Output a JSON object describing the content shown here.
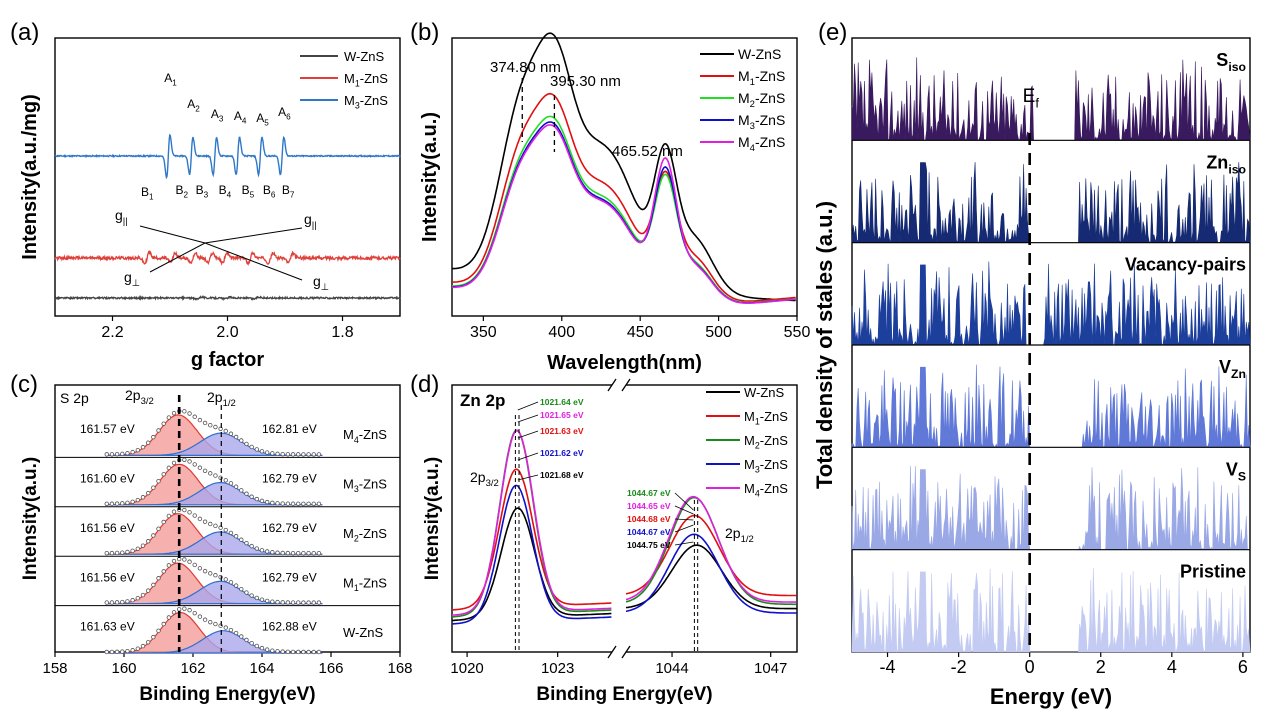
{
  "panel_labels": [
    "(a)",
    "(b)",
    "(c)",
    "(d)",
    "(e)"
  ],
  "chart_data": [
    {
      "id": "a",
      "type": "line",
      "xlabel": "g factor",
      "ylabel": "Intensity(a.u./mg)",
      "xlim": [
        2.3,
        1.7
      ],
      "x_ticks": [
        "2.2",
        "2.0",
        "1.8"
      ],
      "x_tick_values": [
        2.2,
        2.0,
        1.8
      ],
      "series": [
        {
          "name": "W-ZnS",
          "color": "#444444"
        },
        {
          "name": "M1-ZnS",
          "color": "#e0403a"
        },
        {
          "name": "M3-ZnS",
          "color": "#2f78c8"
        }
      ],
      "legend_labels": [
        {
          "main": "W-ZnS",
          "sub": ""
        },
        {
          "main": "M",
          "sub": "1",
          "rest": "-ZnS"
        },
        {
          "main": "M",
          "sub": "3",
          "rest": "-ZnS"
        }
      ],
      "hyperfine_g": [
        2.103,
        2.063,
        2.022,
        1.982,
        1.943,
        1.905
      ],
      "annotations_A": [
        "A1",
        "A2",
        "A3",
        "A4",
        "A5",
        "A6"
      ],
      "annotations_B": [
        "B1",
        "B2",
        "B3",
        "B4",
        "B5",
        "B6",
        "B7"
      ],
      "other_annotations": [
        "g||",
        "g||",
        "g⊥",
        "g⊥"
      ]
    },
    {
      "id": "b",
      "type": "line",
      "xlabel": "Wavelength(nm)",
      "ylabel": "Intensity(a.u.)",
      "xlim": [
        330,
        550
      ],
      "x_ticks": [
        "350",
        "400",
        "450",
        "500",
        "550"
      ],
      "x_tick_values": [
        350,
        400,
        450,
        500,
        550
      ],
      "peaks": [
        374.8,
        395.3,
        465.52
      ],
      "peak_labels": [
        "374.80 nm",
        "395.30 nm",
        "465.52 nm"
      ],
      "series": [
        {
          "name": "W-ZnS",
          "color": "#000000",
          "scale": 1.0
        },
        {
          "name": "M1-ZnS",
          "color": "#e01010",
          "scale": 0.8
        },
        {
          "name": "M2-ZnS",
          "color": "#22dd22",
          "scale": 0.72
        },
        {
          "name": "M3-ZnS",
          "color": "#1010cc",
          "scale": 0.7
        },
        {
          "name": "M4-ZnS",
          "color": "#e020e0",
          "scale": 0.69
        }
      ],
      "legend_labels": [
        {
          "main": "W-ZnS",
          "sub": ""
        },
        {
          "main": "M",
          "sub": "1",
          "rest": "-ZnS"
        },
        {
          "main": "M",
          "sub": "2",
          "rest": "-ZnS"
        },
        {
          "main": "M",
          "sub": "3",
          "rest": "-ZnS"
        },
        {
          "main": "M",
          "sub": "4",
          "rest": "-ZnS"
        }
      ]
    },
    {
      "id": "c",
      "type": "line",
      "title": "S 2p",
      "xlabel": "Binding Energy(eV)",
      "ylabel": "Intensity(a.u.)",
      "xlim": [
        158,
        168
      ],
      "x_ticks": [
        "158",
        "160",
        "162",
        "164",
        "166",
        "168"
      ],
      "x_tick_values": [
        158,
        160,
        162,
        164,
        166,
        168
      ],
      "peak_label_main": [
        "2p",
        "2p"
      ],
      "peak_label_sub": [
        "3/2",
        "1/2"
      ],
      "stack": [
        {
          "sample": "M4-ZnS",
          "sm": "M",
          "ss": "4",
          "sr": "-ZnS",
          "p32": 161.57,
          "p12": 162.81,
          "l32": "161.57 eV",
          "l12": "162.81 eV"
        },
        {
          "sample": "M3-ZnS",
          "sm": "M",
          "ss": "3",
          "sr": "-ZnS",
          "p32": 161.6,
          "p12": 162.79,
          "l32": "161.60 eV",
          "l12": "162.79 eV"
        },
        {
          "sample": "M2-ZnS",
          "sm": "M",
          "ss": "2",
          "sr": "-ZnS",
          "p32": 161.56,
          "p12": 162.79,
          "l32": "161.56 eV",
          "l12": "162.79 eV"
        },
        {
          "sample": "M1-ZnS",
          "sm": "M",
          "ss": "1",
          "sr": "-ZnS",
          "p32": 161.56,
          "p12": 162.79,
          "l32": "161.56 eV",
          "l12": "162.79 eV"
        },
        {
          "sample": "W-ZnS",
          "sm": "W-ZnS",
          "ss": "",
          "sr": "",
          "p32": 161.63,
          "p12": 162.88,
          "l32": "161.63 eV",
          "l12": "162.88 eV"
        }
      ],
      "colors": {
        "p32_fill": "#f4a3a0",
        "p12_fill": "#aaa8ec",
        "p32_line": "#e03a32",
        "p12_line": "#2f6fd0"
      }
    },
    {
      "id": "d",
      "type": "line",
      "title": "Zn 2p",
      "xlabel": "Binding Energy(eV)",
      "ylabel": "Intensity(a.u.)",
      "xlim_left": [
        1019.5,
        1024.8
      ],
      "xlim_right": [
        1042.6,
        1047.8
      ],
      "x_ticks_left": [
        "1020",
        "1023"
      ],
      "x_tick_values_left": [
        1020,
        1023
      ],
      "x_ticks_right": [
        "1044",
        "1047"
      ],
      "x_tick_values_right": [
        1044,
        1047
      ],
      "peak_label_main": [
        "2p",
        "2p"
      ],
      "peak_label_sub": [
        "3/2",
        "1/2"
      ],
      "series": [
        {
          "name": "W-ZnS",
          "color": "#000000",
          "p32": 1021.68,
          "p12": 1044.75,
          "h": 0.5,
          "bg": 0.02
        },
        {
          "name": "M1-ZnS",
          "color": "#e01010",
          "p32": 1021.63,
          "p12": 1044.68,
          "h": 0.63,
          "bg": 0.08
        },
        {
          "name": "M2-ZnS",
          "color": "#1a8a1a",
          "p32": 1021.64,
          "p12": 1044.67,
          "h": 0.84,
          "bg": 0.04
        },
        {
          "name": "M3-ZnS",
          "color": "#1010cc",
          "p32": 1021.62,
          "p12": 1044.67,
          "h": 0.62,
          "bg": 0.0
        },
        {
          "name": "M4-ZnS",
          "color": "#e020e0",
          "p32": 1021.65,
          "p12": 1044.65,
          "h": 0.83,
          "bg": 0.05
        }
      ],
      "legend_labels": [
        {
          "main": "W-ZnS",
          "sub": ""
        },
        {
          "main": "M",
          "sub": "1",
          "rest": "-ZnS"
        },
        {
          "main": "M",
          "sub": "2",
          "rest": "-ZnS"
        },
        {
          "main": "M",
          "sub": "3",
          "rest": "-ZnS"
        },
        {
          "main": "M",
          "sub": "4",
          "rest": "-ZnS"
        }
      ],
      "peak_annotations_left": [
        {
          "text": "1021.64 eV",
          "color": "#1a8a1a"
        },
        {
          "text": "1021.65 eV",
          "color": "#e020e0"
        },
        {
          "text": "1021.63 eV",
          "color": "#e01010"
        },
        {
          "text": "1021.62 eV",
          "color": "#1010cc"
        },
        {
          "text": "1021.68 eV",
          "color": "#000000"
        }
      ],
      "peak_annotations_right": [
        {
          "text": "1044.67 eV",
          "color": "#1a8a1a"
        },
        {
          "text": "1044.65 eV",
          "color": "#e020e0"
        },
        {
          "text": "1044.68 eV",
          "color": "#e01010"
        },
        {
          "text": "1044.67 eV",
          "color": "#1010cc"
        },
        {
          "text": "1044.75 eV",
          "color": "#000000"
        }
      ]
    },
    {
      "id": "e",
      "type": "area",
      "xlabel": "Energy (eV)",
      "ylabel": "Total density of stales (a.u.)",
      "xlim": [
        -5,
        6.2
      ],
      "x_ticks": [
        "-4",
        "-2",
        "0",
        "2",
        "4",
        "6"
      ],
      "x_tick_values": [
        -4,
        -2,
        0,
        2,
        4,
        6
      ],
      "fermi_label_main": "E",
      "fermi_label_sub": "f",
      "fermi_energy": 0,
      "panels": [
        {
          "main": "S",
          "sub": "iso",
          "color": "#3a1a5e",
          "gap": [
            0.1,
            1.3
          ]
        },
        {
          "main": "Zn",
          "sub": "iso",
          "color": "#152a72",
          "gap": [
            0.0,
            1.4
          ]
        },
        {
          "main": "Vacancy-pairs",
          "sub": "",
          "color": "#1d3f9c",
          "gap": [
            -0.1,
            0.4
          ]
        },
        {
          "main": "V",
          "sub": "Zn",
          "color": "#6079d8",
          "gap": [
            0.0,
            1.5
          ]
        },
        {
          "main": "V",
          "sub": "S",
          "color": "#9aa8e6",
          "gap": [
            0.0,
            1.4
          ]
        },
        {
          "main": "Pristine",
          "sub": "",
          "color": "#c3cbf2",
          "gap": [
            0.0,
            1.4
          ]
        }
      ]
    }
  ]
}
